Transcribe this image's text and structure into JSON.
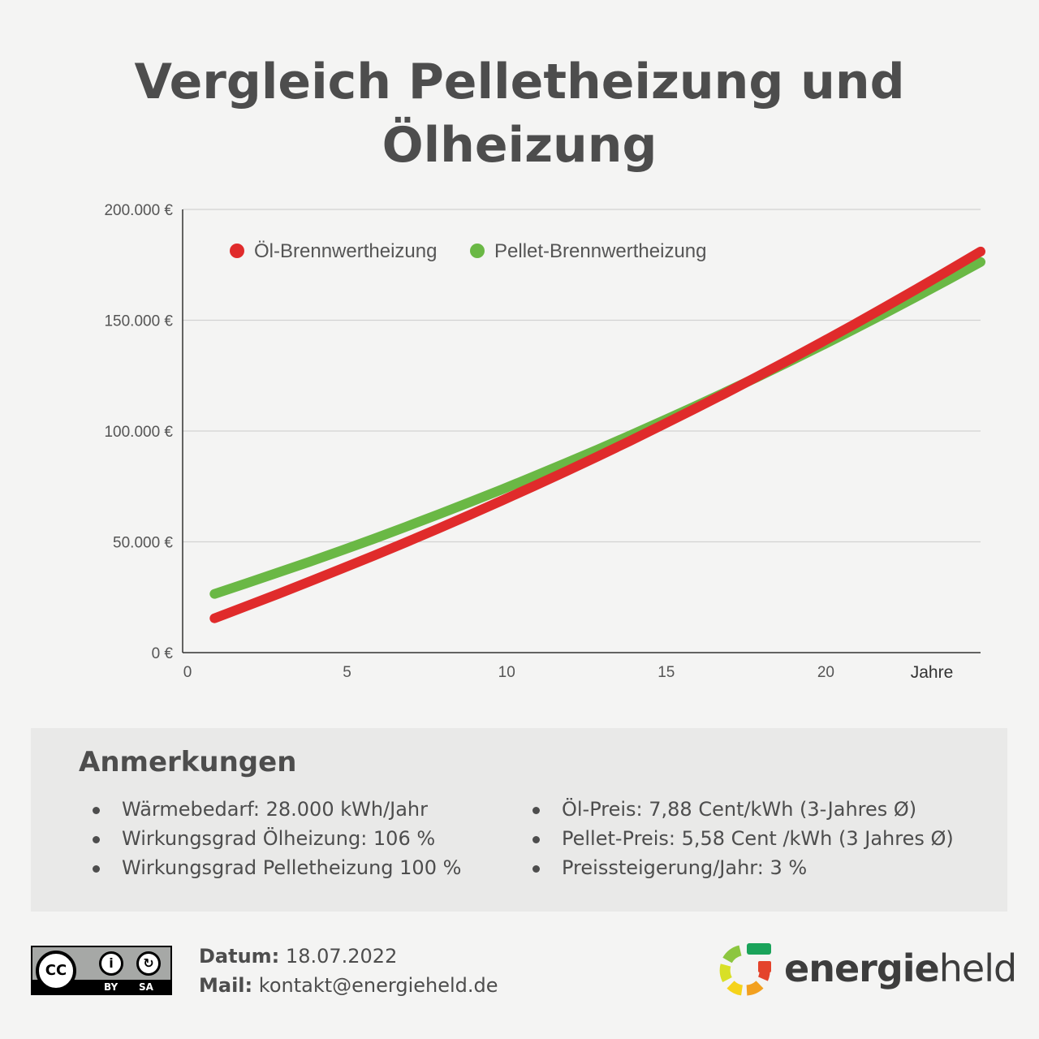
{
  "title": "Vergleich Pelletheizung und Ölheizung",
  "chart_data": {
    "type": "line",
    "title": "",
    "xlabel": "Jahre",
    "ylabel": "",
    "x_ticks": [
      "0",
      "5",
      "10",
      "15",
      "20"
    ],
    "y_ticks": [
      "0 €",
      "50.000 €",
      "100.000 €",
      "150.000 €",
      "200.000 €"
    ],
    "xlim": [
      0,
      25
    ],
    "ylim": [
      0,
      200000
    ],
    "grid": true,
    "legend": "top-left",
    "x": [
      1,
      2,
      3,
      4,
      5,
      6,
      7,
      8,
      9,
      10,
      11,
      12,
      13,
      14,
      15,
      16,
      17,
      18,
      19,
      20,
      21,
      22,
      23,
      24,
      25
    ],
    "series": [
      {
        "name": "Öl-Brennwertheizung",
        "color": "#e02b2b",
        "values": [
          15500,
          21000,
          26500,
          32200,
          38000,
          43800,
          49800,
          55900,
          62200,
          68600,
          75100,
          81700,
          88500,
          95400,
          102500,
          109700,
          117000,
          124500,
          132100,
          139900,
          147800,
          155900,
          164100,
          172500,
          181000
        ]
      },
      {
        "name": "Pellet-Brennwertheizung",
        "color": "#6ab845",
        "values": [
          26500,
          31300,
          36200,
          41100,
          46200,
          51400,
          56800,
          62300,
          67900,
          73600,
          79500,
          85500,
          91600,
          97900,
          104300,
          110800,
          117500,
          124300,
          131300,
          138400,
          145700,
          153100,
          160700,
          168400,
          176300
        ]
      }
    ]
  },
  "notes": {
    "heading": "Anmerkungen",
    "left": [
      "Wärmebedarf: 28.000 kWh/Jahr",
      "Wirkungsgrad Ölheizung: 106 %",
      "Wirkungsgrad Pelletheizung 100 %"
    ],
    "right": [
      "Öl-Preis: 7,88 Cent/kWh (3-Jahres Ø)",
      "Pellet-Preis: 5,58 Cent /kWh (3 Jahres Ø)",
      "Preissteigerung/Jahr: 3 %"
    ]
  },
  "footer": {
    "license": {
      "cc": "CC",
      "by": "BY",
      "sa": "SA"
    },
    "date_label": "Datum:",
    "date_value": "18.07.2022",
    "mail_label": "Mail:",
    "mail_value": "kontakt@energieheld.de",
    "brand_bold": "energie",
    "brand_light": "held"
  }
}
